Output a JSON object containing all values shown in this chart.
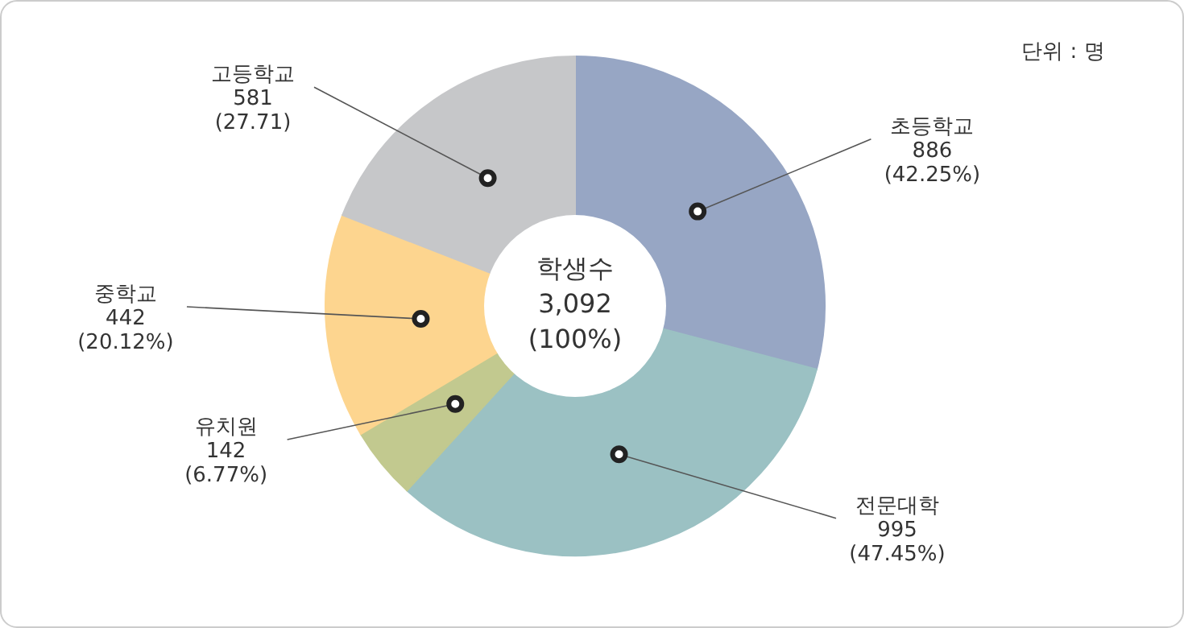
{
  "chart_data": {
    "type": "donut",
    "categories": [
      "초등학교",
      "전문대학",
      "유치원",
      "중학교",
      "고등학교"
    ],
    "values": [
      886,
      995,
      142,
      442,
      581
    ],
    "value_labels": [
      "886 (42.25%)",
      "995 (47.45%)",
      "142 (6.77%)",
      "442 (20.12%)",
      "581 (27.71)"
    ],
    "colors": [
      "#97a6c4",
      "#9bc1c3",
      "#c2c98f",
      "#fdd58f",
      "#c6c7c9"
    ],
    "annotations": [
      "단위 : 명",
      "학생수 3,092 (100%)"
    ]
  }
}
